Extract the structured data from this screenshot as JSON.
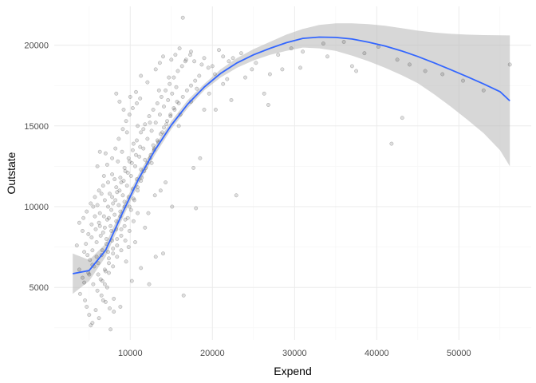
{
  "chart_data": {
    "type": "scatter",
    "title": "",
    "xlabel": "Expend",
    "ylabel": "Outstate",
    "xlim": [
      750,
      58800
    ],
    "ylim": [
      1750,
      22400
    ],
    "x_ticks": [
      10000,
      20000,
      30000,
      40000,
      50000
    ],
    "x_tick_labels": [
      "10000",
      "20000",
      "30000",
      "40000",
      "50000"
    ],
    "y_ticks": [
      5000,
      10000,
      15000,
      20000
    ],
    "y_tick_labels": [
      "5000",
      "10000",
      "15000",
      "20000"
    ],
    "grid": true,
    "legend": "none",
    "colors": {
      "points": "#000000",
      "smooth_line": "#3366ff",
      "confidence_band": "#bdbdbd",
      "grid_major": "#ebebeb",
      "grid_minor": "#f5f5f5"
    },
    "scatter_points": [
      [
        16400,
        21700
      ],
      [
        23500,
        19500
      ],
      [
        16000,
        19800
      ],
      [
        17400,
        19600
      ],
      [
        15500,
        19400
      ],
      [
        14000,
        19300
      ],
      [
        15000,
        19100
      ],
      [
        13600,
        18900
      ],
      [
        16700,
        19000
      ],
      [
        19000,
        19200
      ],
      [
        20000,
        18700
      ],
      [
        21300,
        19300
      ],
      [
        22000,
        19000
      ],
      [
        24800,
        18500
      ],
      [
        27000,
        18200
      ],
      [
        28000,
        19400
      ],
      [
        30700,
        18600
      ],
      [
        33500,
        20100
      ],
      [
        37000,
        18700
      ],
      [
        37500,
        18400
      ],
      [
        45900,
        18400
      ],
      [
        56200,
        18800
      ],
      [
        43100,
        15500
      ],
      [
        41800,
        13900
      ],
      [
        26300,
        17000
      ],
      [
        26800,
        16300
      ],
      [
        21300,
        17600
      ],
      [
        22300,
        16600
      ],
      [
        19000,
        16000
      ],
      [
        18500,
        13000
      ],
      [
        17700,
        12400
      ],
      [
        18000,
        9900
      ],
      [
        22900,
        10700
      ],
      [
        16500,
        4500
      ],
      [
        12600,
        12700
      ],
      [
        14300,
        11500
      ],
      [
        15100,
        10000
      ],
      [
        11300,
        6200
      ],
      [
        12300,
        5200
      ],
      [
        13100,
        6900
      ],
      [
        14000,
        7100
      ],
      [
        10200,
        5400
      ],
      [
        9500,
        6600
      ],
      [
        3500,
        7600
      ],
      [
        3800,
        6100
      ],
      [
        4200,
        5600
      ],
      [
        3900,
        4600
      ],
      [
        4500,
        4200
      ],
      [
        4700,
        3800
      ],
      [
        5000,
        3300
      ],
      [
        5400,
        2800
      ],
      [
        5200,
        2650
      ],
      [
        7600,
        2400
      ],
      [
        6200,
        3100
      ],
      [
        5800,
        3600
      ],
      [
        3800,
        9000
      ],
      [
        4200,
        8500
      ],
      [
        5500,
        10000
      ],
      [
        6000,
        12500
      ],
      [
        6300,
        13400
      ],
      [
        7000,
        13300
      ],
      [
        8300,
        17000
      ],
      [
        8700,
        16500
      ],
      [
        9200,
        16000
      ],
      [
        10000,
        16800
      ],
      [
        10700,
        17100
      ],
      [
        11300,
        18100
      ],
      [
        12100,
        17700
      ],
      [
        13100,
        18500
      ],
      [
        13500,
        17200
      ],
      [
        14700,
        18000
      ],
      [
        16100,
        15700
      ],
      [
        15900,
        15000
      ],
      [
        17400,
        16500
      ],
      [
        18100,
        17300
      ],
      [
        19600,
        17000
      ],
      [
        20400,
        16000
      ],
      [
        8000,
        4300
      ],
      [
        8800,
        3800
      ],
      [
        6700,
        4200
      ],
      [
        7200,
        5000
      ],
      [
        9800,
        7500
      ],
      [
        10600,
        7800
      ],
      [
        11800,
        8700
      ],
      [
        12200,
        9600
      ],
      [
        13000,
        10700
      ],
      [
        13700,
        11000
      ],
      [
        12800,
        13800
      ],
      [
        12400,
        15200
      ],
      [
        11600,
        14800
      ],
      [
        10900,
        15000
      ],
      [
        10400,
        13900
      ],
      [
        9600,
        14600
      ],
      [
        9000,
        13400
      ],
      [
        8500,
        12800
      ],
      [
        7800,
        12000
      ],
      [
        7300,
        11500
      ],
      [
        6800,
        11900
      ],
      [
        6500,
        10800
      ],
      [
        6000,
        10100
      ],
      [
        5700,
        9400
      ],
      [
        5300,
        8900
      ],
      [
        4900,
        8300
      ],
      [
        4600,
        7700
      ],
      [
        4400,
        7200
      ],
      [
        5100,
        6700
      ],
      [
        5600,
        6300
      ],
      [
        6100,
        5800
      ],
      [
        6600,
        5400
      ],
      [
        7000,
        6000
      ],
      [
        7400,
        6500
      ],
      [
        7900,
        7100
      ],
      [
        8400,
        7600
      ],
      [
        8900,
        8200
      ],
      [
        9300,
        8800
      ],
      [
        9700,
        9300
      ],
      [
        10100,
        9800
      ],
      [
        10500,
        10400
      ],
      [
        10900,
        11000
      ],
      [
        11300,
        11600
      ],
      [
        11700,
        12200
      ],
      [
        12100,
        12700
      ],
      [
        12500,
        13200
      ],
      [
        12900,
        13600
      ],
      [
        13300,
        14100
      ],
      [
        13700,
        14500
      ],
      [
        14100,
        14900
      ],
      [
        14500,
        15300
      ],
      [
        14900,
        15700
      ],
      [
        15300,
        16100
      ],
      [
        15700,
        16500
      ],
      [
        6200,
        9000
      ],
      [
        6700,
        8400
      ],
      [
        7200,
        9200
      ],
      [
        7700,
        9800
      ],
      [
        8200,
        10400
      ],
      [
        8700,
        11000
      ],
      [
        9200,
        11600
      ],
      [
        9700,
        12100
      ],
      [
        10200,
        12700
      ],
      [
        10700,
        13200
      ],
      [
        11200,
        13700
      ],
      [
        5400,
        7300
      ],
      [
        5900,
        7800
      ],
      [
        6400,
        8200
      ],
      [
        6900,
        8700
      ],
      [
        7400,
        9300
      ],
      [
        7900,
        10200
      ],
      [
        8400,
        10900
      ],
      [
        8900,
        11500
      ],
      [
        9400,
        12200
      ],
      [
        9900,
        12800
      ],
      [
        6500,
        7000
      ],
      [
        7100,
        7700
      ],
      [
        7700,
        8500
      ],
      [
        8300,
        9100
      ],
      [
        8800,
        9700
      ],
      [
        9300,
        10300
      ],
      [
        7500,
        10800
      ],
      [
        8100,
        11700
      ],
      [
        6900,
        10400
      ],
      [
        6300,
        9600
      ],
      [
        5800,
        8600
      ],
      [
        5300,
        8100
      ],
      [
        4800,
        7000
      ],
      [
        5000,
        5800
      ],
      [
        5500,
        5200
      ],
      [
        6000,
        4800
      ],
      [
        6500,
        4500
      ],
      [
        7000,
        4100
      ],
      [
        7500,
        3700
      ],
      [
        8000,
        3500
      ],
      [
        6900,
        6100
      ],
      [
        7400,
        6800
      ],
      [
        7900,
        7400
      ],
      [
        8400,
        8000
      ],
      [
        8900,
        8600
      ],
      [
        9400,
        9200
      ],
      [
        9900,
        10000
      ],
      [
        10400,
        10500
      ],
      [
        10900,
        11200
      ],
      [
        11400,
        11800
      ],
      [
        11900,
        12400
      ],
      [
        12400,
        13000
      ],
      [
        12900,
        13500
      ],
      [
        13400,
        14000
      ],
      [
        13900,
        14600
      ],
      [
        14400,
        15100
      ],
      [
        14900,
        15600
      ],
      [
        15400,
        16000
      ],
      [
        15900,
        16400
      ],
      [
        16400,
        16800
      ],
      [
        16900,
        17200
      ],
      [
        17400,
        17500
      ],
      [
        17900,
        17800
      ],
      [
        18400,
        18100
      ],
      [
        7200,
        12600
      ],
      [
        7800,
        13000
      ],
      [
        8200,
        13600
      ],
      [
        8600,
        14200
      ],
      [
        9100,
        14800
      ],
      [
        9500,
        15300
      ],
      [
        9900,
        15700
      ],
      [
        10300,
        16100
      ],
      [
        10800,
        16400
      ],
      [
        11200,
        16700
      ],
      [
        6700,
        11300
      ],
      [
        6200,
        11000
      ],
      [
        5700,
        10600
      ],
      [
        5200,
        10200
      ],
      [
        4700,
        9700
      ],
      [
        4300,
        9300
      ],
      [
        6100,
        6500
      ],
      [
        6600,
        7300
      ],
      [
        7100,
        8000
      ],
      [
        7600,
        8800
      ],
      [
        8100,
        9500
      ],
      [
        8600,
        10100
      ],
      [
        9100,
        10700
      ],
      [
        9600,
        11300
      ],
      [
        10100,
        11900
      ],
      [
        10600,
        12500
      ],
      [
        11100,
        13100
      ],
      [
        11600,
        13600
      ],
      [
        12100,
        14200
      ],
      [
        12600,
        14700
      ],
      [
        13100,
        15200
      ],
      [
        13600,
        15700
      ],
      [
        14100,
        16200
      ],
      [
        14600,
        16600
      ],
      [
        15100,
        17000
      ],
      [
        15600,
        17400
      ],
      [
        7300,
        7200
      ],
      [
        7800,
        7900
      ],
      [
        8300,
        8600
      ],
      [
        8800,
        9400
      ],
      [
        9300,
        10000
      ],
      [
        9800,
        10600
      ],
      [
        10300,
        11100
      ],
      [
        10800,
        11700
      ],
      [
        11300,
        12300
      ],
      [
        11800,
        12900
      ],
      [
        6400,
        5500
      ],
      [
        6900,
        5200
      ],
      [
        7400,
        5900
      ],
      [
        7900,
        6300
      ],
      [
        8400,
        6900
      ],
      [
        8900,
        7300
      ],
      [
        9400,
        7900
      ],
      [
        9900,
        8500
      ],
      [
        10400,
        9100
      ],
      [
        10900,
        9600
      ],
      [
        5900,
        6900
      ],
      [
        5400,
        6400
      ],
      [
        4900,
        5900
      ],
      [
        4400,
        5300
      ],
      [
        6300,
        8800
      ],
      [
        6800,
        9400
      ],
      [
        7300,
        10000
      ],
      [
        7800,
        10600
      ],
      [
        8300,
        11200
      ],
      [
        8800,
        11800
      ],
      [
        9300,
        12400
      ],
      [
        9800,
        13000
      ],
      [
        10300,
        13500
      ],
      [
        10800,
        14100
      ],
      [
        11300,
        14600
      ],
      [
        11800,
        15100
      ],
      [
        12300,
        15600
      ],
      [
        12800,
        16000
      ],
      [
        13300,
        16400
      ],
      [
        13800,
        16800
      ],
      [
        14300,
        17200
      ],
      [
        14800,
        17600
      ],
      [
        15300,
        18000
      ],
      [
        15800,
        18400
      ],
      [
        16300,
        18700
      ],
      [
        16800,
        19100
      ],
      [
        17300,
        19400
      ],
      [
        20800,
        19700
      ],
      [
        22500,
        19200
      ],
      [
        25300,
        18900
      ],
      [
        28500,
        18500
      ],
      [
        31000,
        19600
      ],
      [
        29600,
        19800
      ],
      [
        34000,
        19300
      ],
      [
        36000,
        20200
      ],
      [
        38500,
        19500
      ],
      [
        40200,
        19900
      ],
      [
        42500,
        19100
      ],
      [
        44000,
        18800
      ],
      [
        48000,
        18200
      ],
      [
        50500,
        17800
      ],
      [
        53000,
        17200
      ],
      [
        24000,
        18000
      ],
      [
        21800,
        17900
      ],
      [
        20300,
        18200
      ],
      [
        19500,
        18600
      ],
      [
        18700,
        18800
      ],
      [
        17800,
        19000
      ]
    ],
    "smooth_x": [
      3000,
      5000,
      7000,
      9000,
      11000,
      13000,
      15000,
      17000,
      19000,
      21000,
      23000,
      25000,
      27000,
      29000,
      31000,
      33000,
      35000,
      37000,
      39000,
      41000,
      43000,
      45000,
      47000,
      49000,
      51000,
      53000,
      55000,
      56200
    ],
    "smooth_y": [
      5850,
      6050,
      7300,
      9550,
      11700,
      13500,
      15050,
      16350,
      17400,
      18250,
      18900,
      19400,
      19800,
      20150,
      20420,
      20500,
      20480,
      20380,
      20180,
      19950,
      19650,
      19300,
      18900,
      18480,
      18050,
      17600,
      17120,
      16550
    ],
    "band_upper": [
      7100,
      6700,
      7700,
      9900,
      12000,
      13800,
      15300,
      16600,
      17600,
      18500,
      19200,
      19750,
      20200,
      20650,
      21000,
      21250,
      21350,
      21350,
      21300,
      21200,
      21050,
      20900,
      20780,
      20700,
      20650,
      20620,
      20610,
      20600
    ],
    "band_lower": [
      4600,
      5400,
      6900,
      9200,
      11400,
      13200,
      14800,
      16100,
      17200,
      18000,
      18600,
      19050,
      19400,
      19650,
      19850,
      19800,
      19650,
      19350,
      19000,
      18600,
      18150,
      17650,
      16950,
      16200,
      15400,
      14550,
      13500,
      12500
    ]
  }
}
